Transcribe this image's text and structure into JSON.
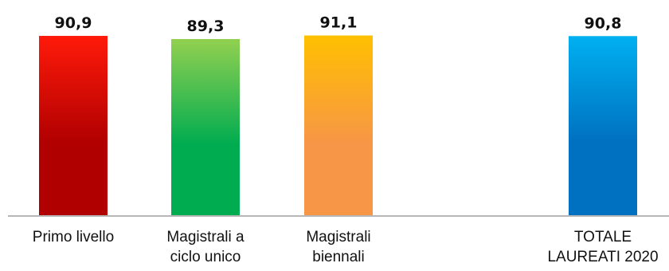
{
  "chart_data": {
    "type": "bar",
    "categories": [
      [
        "Primo livello"
      ],
      [
        "Magistrali a",
        "ciclo unico"
      ],
      [
        "Magistrali",
        "biennali"
      ],
      [
        "TOTALE",
        "LAUREATI 2020"
      ]
    ],
    "values": [
      90.9,
      89.3,
      91.1,
      90.8
    ],
    "value_labels": [
      "90,9",
      "89,3",
      "91,1",
      "90,8"
    ],
    "colors": [
      [
        "#ff1a0a",
        "#b00000"
      ],
      [
        "#92d050",
        "#00ac50"
      ],
      [
        "#ffc000",
        "#f79646"
      ],
      [
        "#00b0f0",
        "#0070c0"
      ]
    ],
    "title": "",
    "xlabel": "",
    "ylabel": "",
    "grid": false,
    "legend": "none"
  }
}
